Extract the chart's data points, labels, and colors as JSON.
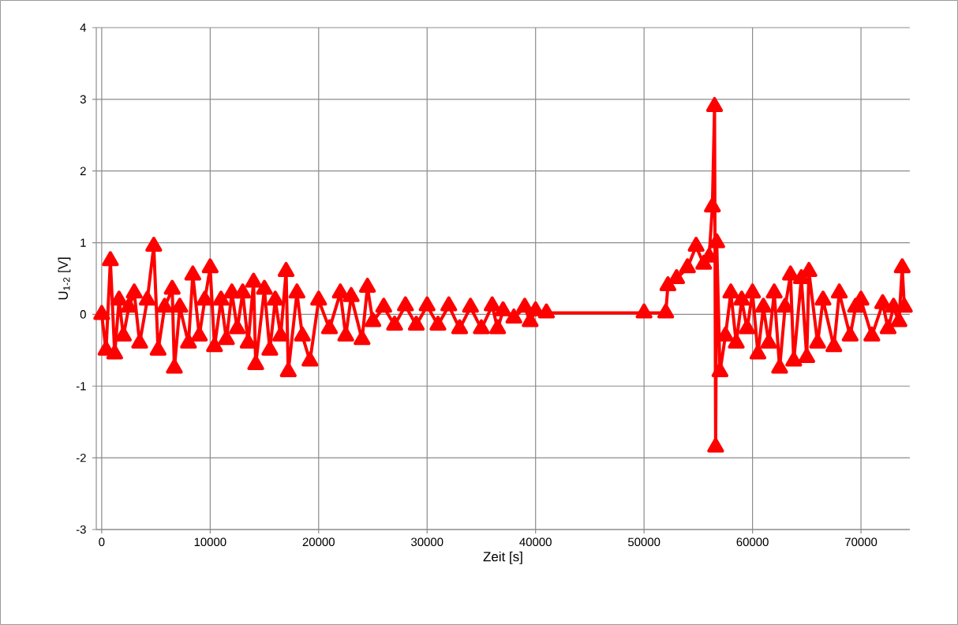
{
  "chart_data": {
    "type": "line",
    "xlabel": "Zeit [s]",
    "ylabel": "U$_{1-2}$ [V]",
    "xlim": [
      -500,
      74500
    ],
    "ylim": [
      -3,
      4
    ],
    "xticks": [
      0,
      10000,
      20000,
      30000,
      40000,
      50000,
      60000,
      70000
    ],
    "yticks": [
      -3,
      -2,
      -1,
      0,
      1,
      2,
      3,
      4
    ],
    "grid": true,
    "marker": "triangle",
    "line_style": "solid",
    "series": [
      {
        "color": "#ff0000",
        "x": [
          0,
          400,
          800,
          1200,
          1600,
          2000,
          2500,
          3000,
          3500,
          4200,
          4800,
          5200,
          5800,
          6500,
          6700,
          7200,
          8000,
          8400,
          9000,
          9500,
          10000,
          10400,
          11000,
          11500,
          12000,
          12500,
          13000,
          13500,
          14000,
          14200,
          15000,
          15500,
          16000,
          16500,
          17000,
          17200,
          18000,
          18500,
          19200,
          20000,
          21000,
          22000,
          22500,
          23000,
          24000,
          24500,
          25000,
          26000,
          27000,
          28000,
          29000,
          30000,
          31000,
          32000,
          33000,
          34000,
          35000,
          36000,
          36500,
          37000,
          38000,
          39000,
          39500,
          40000,
          41000,
          50000,
          52000,
          52200,
          53000,
          54000,
          54800,
          55500,
          56000,
          56300,
          56500,
          56600,
          56700,
          57000,
          57500,
          58000,
          58500,
          59000,
          59500,
          60000,
          60500,
          61000,
          61500,
          62000,
          62500,
          63000,
          63500,
          63800,
          64500,
          65000,
          65200,
          66000,
          66500,
          67500,
          68000,
          69000,
          69500,
          70000,
          71000,
          72000,
          72500,
          73000,
          73500,
          73800,
          74000
        ],
        "values": [
          0,
          -0.5,
          0.75,
          -0.55,
          0.2,
          -0.3,
          0.1,
          0.3,
          -0.4,
          0.2,
          0.95,
          -0.5,
          0.1,
          0.35,
          -0.75,
          0.1,
          -0.4,
          0.55,
          -0.3,
          0.2,
          0.65,
          -0.45,
          0.2,
          -0.35,
          0.3,
          -0.2,
          0.3,
          -0.4,
          0.45,
          -0.7,
          0.35,
          -0.5,
          0.2,
          -0.3,
          0.6,
          -0.8,
          0.3,
          -0.3,
          -0.65,
          0.2,
          -0.2,
          0.3,
          -0.3,
          0.25,
          -0.35,
          0.38,
          -0.1,
          0.1,
          -0.15,
          0.12,
          -0.15,
          0.12,
          -0.15,
          0.12,
          -0.2,
          0.1,
          -0.2,
          0.12,
          -0.2,
          0.05,
          -0.05,
          0.1,
          -0.1,
          0.05,
          0.02,
          0.02,
          0.02,
          0.4,
          0.5,
          0.65,
          0.95,
          0.7,
          0.8,
          1.5,
          2.9,
          -1.85,
          1.0,
          -0.8,
          -0.3,
          0.3,
          -0.4,
          0.2,
          -0.2,
          0.3,
          -0.55,
          0.1,
          -0.4,
          0.3,
          -0.75,
          0.1,
          0.55,
          -0.65,
          0.5,
          -0.6,
          0.6,
          -0.4,
          0.2,
          -0.45,
          0.3,
          -0.3,
          0.1,
          0.2,
          -0.3,
          0.15,
          -0.2,
          0.1,
          -0.1,
          0.65,
          0.1
        ]
      }
    ]
  }
}
